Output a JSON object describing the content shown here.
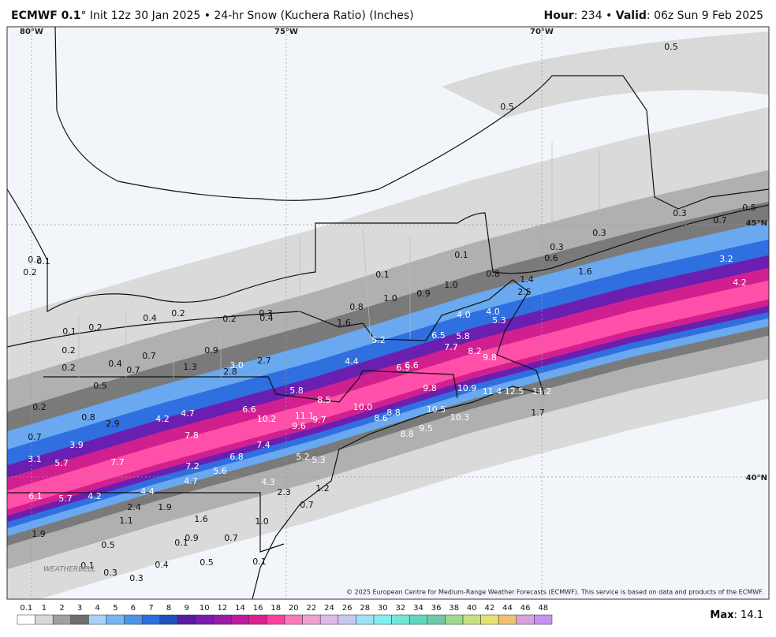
{
  "header": {
    "model": "ECMWF 0.1",
    "info": "° Init 12z 30 Jan 2025 • 24-hr Snow (Kuchera Ratio) (Inches)",
    "hour_key": "Hour",
    "hour_val": ": 234 • ",
    "valid_key": "Valid",
    "valid_val": ": 06z Sun 9 Feb 2025"
  },
  "grid_labels": [
    "80°W",
    "75°W",
    "70°W",
    "45°N",
    "40°N"
  ],
  "map_labels": [
    "0.5",
    "0.5",
    "0.3",
    "0.7",
    "0.5",
    "0.3",
    "0.3",
    "0.1",
    "0.6",
    "3.2",
    "0.2",
    "0.1",
    "0.2",
    "0.8",
    "0.1",
    "1.6",
    "1.4",
    "1.0",
    "4.2",
    "2.5",
    "0.9",
    "1.0",
    "0.8",
    "0.2",
    "0.3",
    "0.4",
    "0.2",
    "0.4",
    "4.0",
    "4.0",
    "5.3",
    "1.6",
    "0.1",
    "0.2",
    "0.9",
    "0.7",
    "0.2",
    "6.5",
    "5.8",
    "5.2",
    "7.7",
    "8.2",
    "9.8",
    "0.4",
    "0.7",
    "0.2",
    "1.3",
    "3.0",
    "2.7",
    "2.8",
    "4.4",
    "6.5",
    "6.6",
    "0.5",
    "5.8",
    "9.8",
    "10.9",
    "11.4",
    "12.5",
    "11.2",
    "0.2",
    "8.5",
    "6.6",
    "10.0",
    "8.8",
    "10.5",
    "10.3",
    "1.7",
    "0.8",
    "2.9",
    "4.2",
    "4.7",
    "10.2",
    "11.1",
    "9.7",
    "8.6",
    "9.6",
    "8.8",
    "9.5",
    "0.7",
    "3.9",
    "7.8",
    "7.4",
    "3.1",
    "5.7",
    "7.7",
    "7.2",
    "6.8",
    "5.2",
    "5.3",
    "5.6",
    "4.7",
    "4.3",
    "1.2",
    "2.3",
    "6.1",
    "5.7",
    "4.2",
    "4.4",
    "1.9",
    "2.4",
    "0.7",
    "1.1",
    "1.6",
    "1.0",
    "1.9",
    "0.7",
    "0.9",
    "0.1",
    "0.5",
    "0.4",
    "0.5",
    "0.1",
    "0.1",
    "0.3",
    "0.3"
  ],
  "logo": "WEATHERBELL",
  "copyright": "© 2025 European Centre for Medium-Range Weather Forecasts (ECMWF). This service is based on data and products of the ECMWF.",
  "legend": {
    "labels": [
      0.1,
      1,
      2,
      3,
      4,
      5,
      6,
      7,
      8,
      9,
      10,
      12,
      14,
      16,
      18,
      20,
      22,
      24,
      26,
      28,
      30,
      32,
      34,
      36,
      38,
      40,
      42,
      44,
      46,
      48
    ],
    "max_key": "Max",
    "max_val": ": 14.1"
  }
}
